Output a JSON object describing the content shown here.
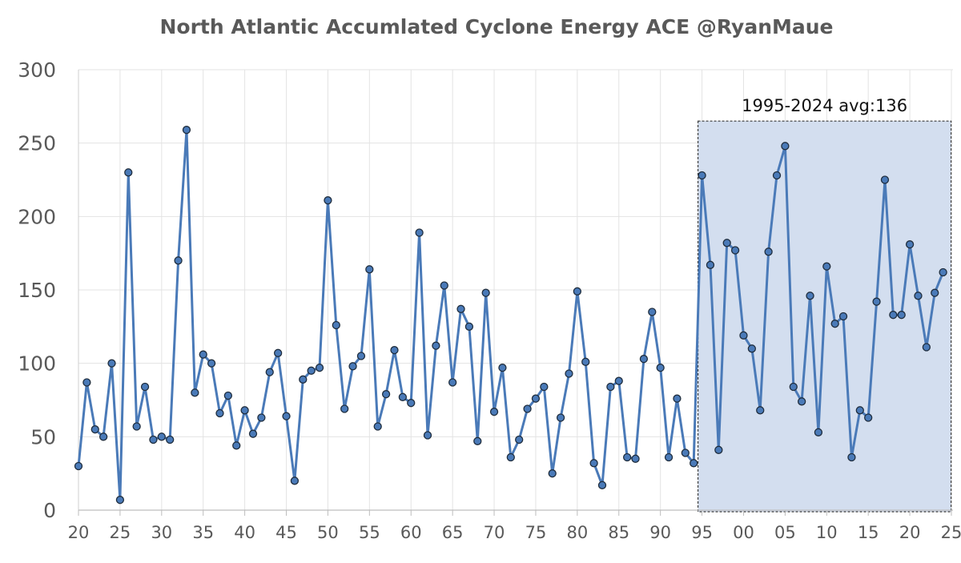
{
  "chart_data": {
    "type": "line",
    "title": "North Atlantic Accumlated Cyclone Energy ACE  @RyanMaue",
    "xlabel": "",
    "ylabel": "",
    "ylim": [
      0,
      300
    ],
    "y_ticks": [
      "0",
      "50",
      "100",
      "150",
      "200",
      "250",
      "300"
    ],
    "xlim": [
      1920,
      2025
    ],
    "x_tick_labels": [
      {
        "year": 1920,
        "label": "20"
      },
      {
        "year": 1925,
        "label": "25"
      },
      {
        "year": 1930,
        "label": "30"
      },
      {
        "year": 1935,
        "label": "35"
      },
      {
        "year": 1940,
        "label": "40"
      },
      {
        "year": 1945,
        "label": "45"
      },
      {
        "year": 1950,
        "label": "50"
      },
      {
        "year": 1955,
        "label": "55"
      },
      {
        "year": 1960,
        "label": "60"
      },
      {
        "year": 1965,
        "label": "65"
      },
      {
        "year": 1970,
        "label": "70"
      },
      {
        "year": 1975,
        "label": "75"
      },
      {
        "year": 1980,
        "label": "80"
      },
      {
        "year": 1985,
        "label": "85"
      },
      {
        "year": 1990,
        "label": "90"
      },
      {
        "year": 1995,
        "label": "95"
      },
      {
        "year": 2000,
        "label": "00"
      },
      {
        "year": 2005,
        "label": "05"
      },
      {
        "year": 2010,
        "label": "10"
      },
      {
        "year": 2015,
        "label": "15"
      },
      {
        "year": 2020,
        "label": "20"
      },
      {
        "year": 2025,
        "label": "25"
      }
    ],
    "grid": true,
    "series": [
      {
        "name": "ACE",
        "color": "#4a7ab8",
        "marker_fill": "#4a7ab8",
        "marker_edge": "#1f2d3d",
        "x": [
          1920,
          1921,
          1922,
          1923,
          1924,
          1925,
          1926,
          1927,
          1928,
          1929,
          1930,
          1931,
          1932,
          1933,
          1934,
          1935,
          1936,
          1937,
          1938,
          1939,
          1940,
          1941,
          1942,
          1943,
          1944,
          1945,
          1946,
          1947,
          1948,
          1949,
          1950,
          1951,
          1952,
          1953,
          1954,
          1955,
          1956,
          1957,
          1958,
          1959,
          1960,
          1961,
          1962,
          1963,
          1964,
          1965,
          1966,
          1967,
          1968,
          1969,
          1970,
          1971,
          1972,
          1973,
          1974,
          1975,
          1976,
          1977,
          1978,
          1979,
          1980,
          1981,
          1982,
          1983,
          1984,
          1985,
          1986,
          1987,
          1988,
          1989,
          1990,
          1991,
          1992,
          1993,
          1994,
          1995,
          1996,
          1997,
          1998,
          1999,
          2000,
          2001,
          2002,
          2003,
          2004,
          2005,
          2006,
          2007,
          2008,
          2009,
          2010,
          2011,
          2012,
          2013,
          2014,
          2015,
          2016,
          2017,
          2018,
          2019,
          2020,
          2021,
          2022,
          2023,
          2024
        ],
        "values": [
          30,
          87,
          55,
          50,
          100,
          7,
          230,
          57,
          84,
          48,
          50,
          48,
          170,
          259,
          80,
          106,
          100,
          66,
          78,
          44,
          68,
          52,
          63,
          94,
          107,
          64,
          20,
          89,
          95,
          97,
          211,
          126,
          69,
          98,
          105,
          164,
          57,
          79,
          109,
          77,
          73,
          189,
          51,
          112,
          153,
          87,
          137,
          125,
          47,
          148,
          67,
          97,
          36,
          48,
          69,
          76,
          84,
          25,
          63,
          93,
          149,
          101,
          32,
          17,
          84,
          88,
          36,
          35,
          103,
          135,
          97,
          36,
          76,
          39,
          32,
          228,
          167,
          41,
          182,
          177,
          119,
          110,
          68,
          176,
          228,
          248,
          84,
          74,
          146,
          53,
          166,
          127,
          132,
          36,
          68,
          63,
          142,
          225,
          133,
          133,
          181,
          146,
          111,
          148,
          162
        ]
      }
    ],
    "highlight": {
      "label": "1995-2024 avg:136",
      "x_start": 1995,
      "x_end": 2024,
      "y_top": 265,
      "y_bottom": 0,
      "fill": "#d3deef",
      "border": "#3a3a3a"
    }
  }
}
